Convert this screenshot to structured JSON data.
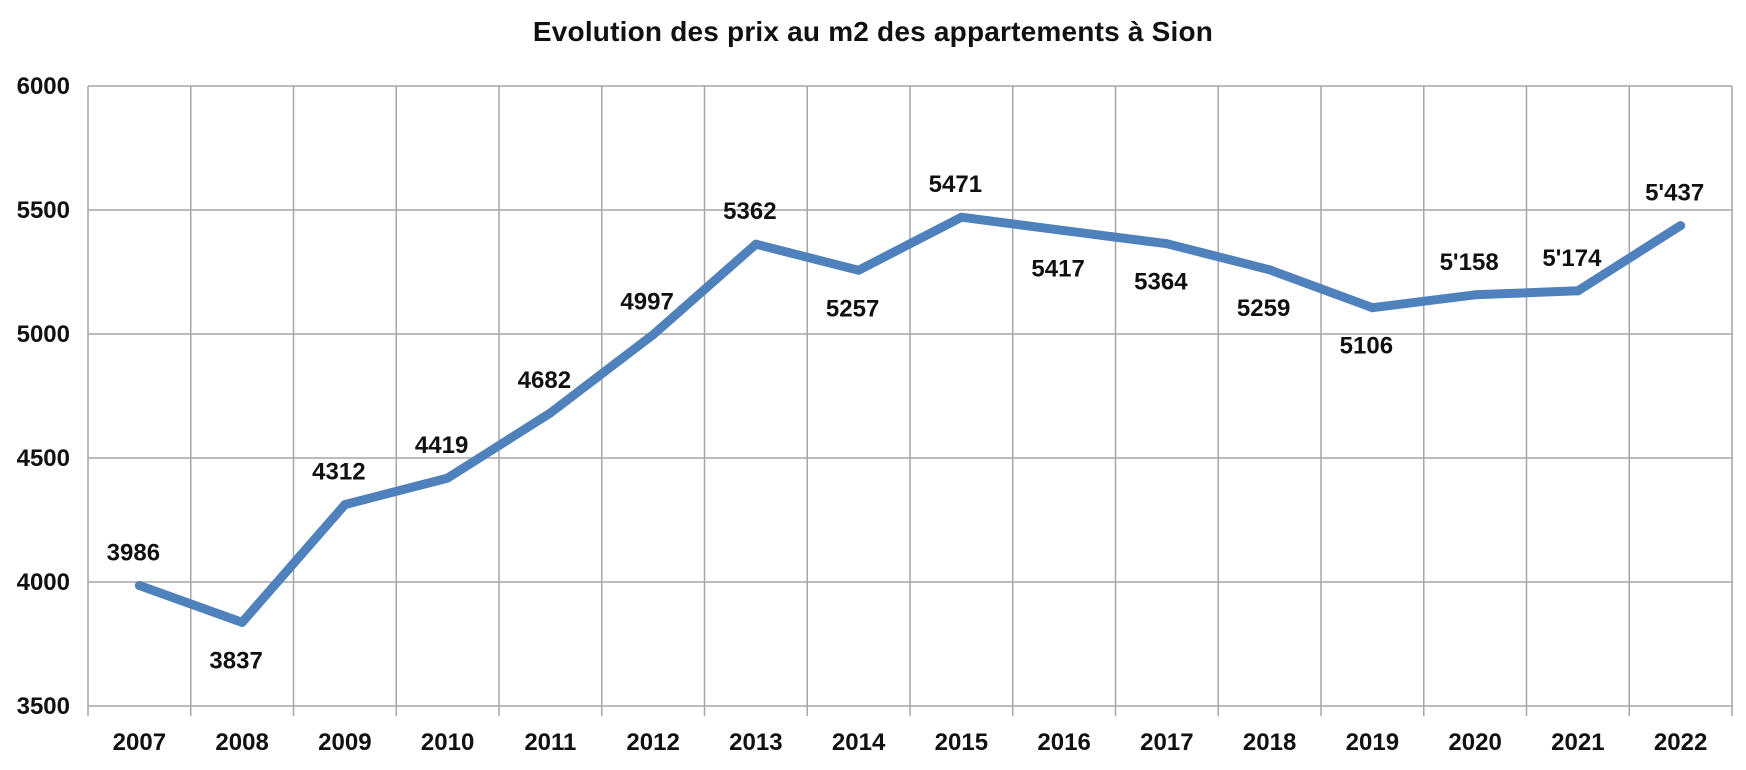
{
  "chart_data": {
    "type": "line",
    "title": "Evolution des prix au m2 des appartements à Sion",
    "xlabel": "",
    "ylabel": "",
    "categories": [
      "2007",
      "2008",
      "2009",
      "2010",
      "2011",
      "2012",
      "2013",
      "2014",
      "2015",
      "2016",
      "2017",
      "2018",
      "2019",
      "2020",
      "2021",
      "2022"
    ],
    "series": [
      {
        "values": [
          3986,
          3837,
          4312,
          4419,
          4682,
          4997,
          5362,
          5257,
          5471,
          5417,
          5364,
          5259,
          5106,
          5158,
          5174,
          5437
        ],
        "data_labels": [
          "3986",
          "3837",
          "4312",
          "4419",
          "4682",
          "4997",
          "5362",
          "5257",
          "5471",
          "5417",
          "5364",
          "5259",
          "5106",
          "5'158",
          "5'174",
          "5'437"
        ],
        "label_positions": [
          "above",
          "below",
          "above",
          "above",
          "above",
          "above",
          "above",
          "below",
          "above",
          "below",
          "below",
          "below",
          "below",
          "above",
          "above",
          "above"
        ],
        "color": "#4f81bd"
      }
    ],
    "ylim": [
      3500,
      6000
    ],
    "yticks": [
      3500,
      4000,
      4500,
      5000,
      5500,
      6000
    ],
    "grid": true,
    "legend": "none"
  },
  "colors": {
    "line": "#4f81bd",
    "grid": "#a6a6a6"
  }
}
